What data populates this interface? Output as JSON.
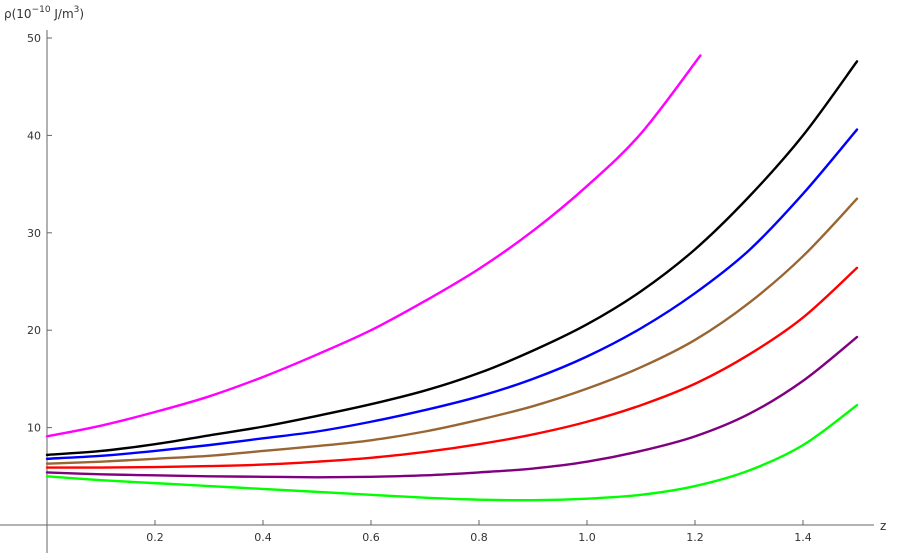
{
  "chart_data": {
    "type": "line",
    "title": "",
    "xlabel": "z",
    "ylabel": {
      "prefix": "ρ(10",
      "exp": "−10",
      "unit": " J/m",
      "unit_exp": "3",
      "suffix": ")"
    },
    "xlim": [
      0,
      1.52
    ],
    "ylim": [
      0,
      50
    ],
    "xticks": [
      0.2,
      0.4,
      0.6,
      0.8,
      1.0,
      1.2,
      1.4
    ],
    "xtick_labels": [
      "0.2",
      "0.4",
      "0.6",
      "0.8",
      "1.0",
      "1.2",
      "1.4"
    ],
    "yticks": [
      10,
      20,
      30,
      40,
      50
    ],
    "ytick_labels": [
      "10",
      "20",
      "30",
      "40",
      "50"
    ],
    "grid": false,
    "legend": "none",
    "series": [
      {
        "color": "#ff00ff",
        "x": [
          0,
          0.1,
          0.2,
          0.3,
          0.4,
          0.5,
          0.6,
          0.7,
          0.8,
          0.9,
          1.0,
          1.1,
          1.21
        ],
        "y": [
          9.1,
          10.2,
          11.6,
          13.2,
          15.2,
          17.5,
          20.0,
          23.0,
          26.3,
          30.2,
          34.8,
          40.2,
          48.2
        ]
      },
      {
        "color": "#000000",
        "x": [
          0,
          0.1,
          0.2,
          0.3,
          0.4,
          0.5,
          0.6,
          0.7,
          0.8,
          0.9,
          1.0,
          1.1,
          1.2,
          1.3,
          1.4,
          1.5
        ],
        "y": [
          7.2,
          7.6,
          8.3,
          9.2,
          10.1,
          11.2,
          12.4,
          13.8,
          15.6,
          17.9,
          20.6,
          24.0,
          28.3,
          33.7,
          40.0,
          47.6
        ]
      },
      {
        "color": "#0000ff",
        "x": [
          0,
          0.1,
          0.2,
          0.3,
          0.4,
          0.5,
          0.6,
          0.7,
          0.8,
          0.9,
          1.0,
          1.1,
          1.2,
          1.3,
          1.4,
          1.5
        ],
        "y": [
          6.8,
          7.1,
          7.6,
          8.2,
          8.9,
          9.6,
          10.6,
          11.8,
          13.2,
          15.0,
          17.3,
          20.2,
          23.8,
          28.2,
          34.0,
          40.6
        ]
      },
      {
        "color": "#996633",
        "x": [
          0,
          0.1,
          0.2,
          0.3,
          0.4,
          0.5,
          0.6,
          0.7,
          0.8,
          0.9,
          1.0,
          1.1,
          1.2,
          1.3,
          1.4,
          1.5
        ],
        "y": [
          6.3,
          6.5,
          6.8,
          7.1,
          7.6,
          8.1,
          8.7,
          9.6,
          10.8,
          12.2,
          14.0,
          16.2,
          19.0,
          22.8,
          27.6,
          33.5
        ]
      },
      {
        "color": "#ff0000",
        "x": [
          0,
          0.1,
          0.2,
          0.3,
          0.4,
          0.5,
          0.6,
          0.7,
          0.8,
          0.9,
          1.0,
          1.1,
          1.2,
          1.3,
          1.4,
          1.5
        ],
        "y": [
          5.9,
          5.9,
          5.95,
          6.05,
          6.2,
          6.5,
          6.9,
          7.5,
          8.3,
          9.3,
          10.6,
          12.3,
          14.5,
          17.5,
          21.3,
          26.4
        ]
      },
      {
        "color": "#800080",
        "x": [
          0,
          0.1,
          0.2,
          0.3,
          0.4,
          0.5,
          0.6,
          0.7,
          0.8,
          0.9,
          1.0,
          1.1,
          1.2,
          1.3,
          1.4,
          1.5
        ],
        "y": [
          5.4,
          5.2,
          5.1,
          5.0,
          4.95,
          4.9,
          4.95,
          5.1,
          5.4,
          5.8,
          6.5,
          7.6,
          9.1,
          11.4,
          14.8,
          19.3
        ]
      },
      {
        "color": "#00ff00",
        "x": [
          0,
          0.1,
          0.2,
          0.3,
          0.4,
          0.5,
          0.6,
          0.7,
          0.8,
          0.9,
          1.0,
          1.1,
          1.2,
          1.3,
          1.4,
          1.5
        ],
        "y": [
          5.0,
          4.6,
          4.3,
          4.0,
          3.7,
          3.4,
          3.1,
          2.8,
          2.6,
          2.55,
          2.7,
          3.1,
          4.0,
          5.6,
          8.2,
          12.3
        ]
      }
    ]
  }
}
